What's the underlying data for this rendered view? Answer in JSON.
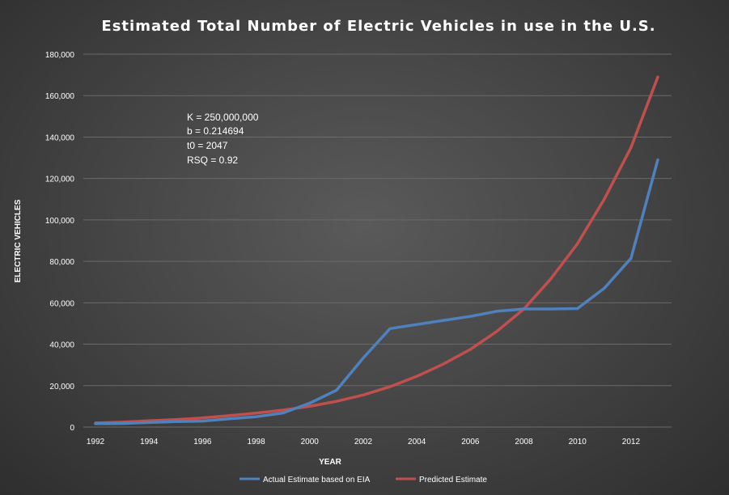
{
  "chart_data": {
    "type": "line",
    "title": "Estimated Total Number of Electric Vehicles in use in the U.S.",
    "xlabel": "YEAR",
    "ylabel": "ELECTRIC VEHICLES",
    "xlim": [
      1992,
      2013
    ],
    "ylim": [
      0,
      180000
    ],
    "x_ticks": [
      1992,
      1994,
      1996,
      1998,
      2000,
      2002,
      2004,
      2006,
      2008,
      2010,
      2012
    ],
    "y_ticks": [
      0,
      20000,
      40000,
      60000,
      80000,
      100000,
      120000,
      140000,
      160000,
      180000
    ],
    "y_tick_labels": [
      "0",
      "20,000",
      "40,000",
      "60,000",
      "80,000",
      "100,000",
      "120,000",
      "140,000",
      "160,000",
      "180,000"
    ],
    "grid": true,
    "legend_position": "bottom",
    "x": [
      1992,
      1993,
      1994,
      1995,
      1996,
      1997,
      1998,
      1999,
      2000,
      2001,
      2002,
      2003,
      2004,
      2005,
      2006,
      2007,
      2008,
      2009,
      2010,
      2011,
      2012,
      2013
    ],
    "series": [
      {
        "name": "Actual Estimate based on EIA",
        "color": "#4f81bd",
        "values": [
          1600,
          1700,
          2200,
          2600,
          2900,
          4000,
          5000,
          6800,
          11500,
          17800,
          33400,
          47500,
          49500,
          51500,
          53400,
          55900,
          57000,
          57000,
          57200,
          67000,
          81500,
          129000
        ]
      },
      {
        "name": "Predicted Estimate",
        "color": "#c0504d",
        "values": [
          2000,
          2400,
          3000,
          3600,
          4400,
          5500,
          6700,
          8200,
          10000,
          12400,
          15500,
          19500,
          24500,
          30500,
          37500,
          46300,
          57000,
          71500,
          88500,
          110000,
          135000,
          169000
        ]
      }
    ],
    "annotations": [
      "K = 250,000,000",
      "b = 0.214694",
      "t0 = 2047",
      "RSQ = 0.92"
    ]
  }
}
